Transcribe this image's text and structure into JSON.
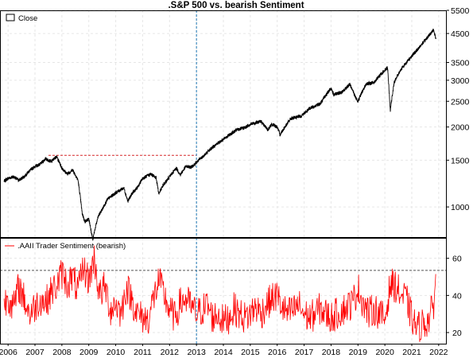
{
  "chart_data": [
    {
      "type": "line",
      "title": ".S&P 500 vs. bearish Sentiment",
      "xlabel": "",
      "ylabel": "",
      "y_scale": "log",
      "ylim": [
        770,
        5500
      ],
      "y_ticks": [
        1000,
        1500,
        2000,
        2500,
        3000,
        3500,
        4500,
        5500
      ],
      "x_tick_labels": [
        "2006",
        "2007",
        "2008",
        "2009",
        "2010",
        "2011",
        "2012",
        "2013",
        "2014",
        "2015",
        "2016",
        "2017",
        "2018",
        "2019",
        "2020",
        "2021",
        "2022"
      ],
      "xlim": [
        2005.7,
        2022.3
      ],
      "grid": true,
      "legend_position": "top-left",
      "series": [
        {
          "name": "Close",
          "color": "#000000",
          "x": [
            2005.85,
            2006.0,
            2006.2,
            2006.4,
            2006.6,
            2006.8,
            2007.0,
            2007.2,
            2007.4,
            2007.6,
            2007.8,
            2008.0,
            2008.2,
            2008.4,
            2008.6,
            2008.75,
            2008.85,
            2009.0,
            2009.15,
            2009.2,
            2009.35,
            2009.5,
            2009.7,
            2010.0,
            2010.3,
            2010.45,
            2010.6,
            2010.8,
            2011.0,
            2011.3,
            2011.5,
            2011.6,
            2011.75,
            2012.0,
            2012.25,
            2012.4,
            2012.6,
            2012.8,
            2013.0,
            2013.3,
            2013.6,
            2014.0,
            2014.5,
            2014.8,
            2015.0,
            2015.4,
            2015.65,
            2015.8,
            2016.0,
            2016.1,
            2016.5,
            2016.9,
            2017.2,
            2017.6,
            2018.0,
            2018.1,
            2018.4,
            2018.7,
            2018.9,
            2019.0,
            2019.3,
            2019.6,
            2019.9,
            2020.1,
            2020.2,
            2020.35,
            2020.6,
            2020.9,
            2021.2,
            2021.5,
            2021.7,
            2021.8,
            2021.9
          ],
          "y": [
            1250,
            1280,
            1300,
            1260,
            1300,
            1370,
            1420,
            1450,
            1520,
            1480,
            1550,
            1400,
            1330,
            1380,
            1260,
            950,
            880,
            900,
            750,
            800,
            920,
            980,
            1070,
            1130,
            1180,
            1050,
            1120,
            1180,
            1280,
            1330,
            1290,
            1120,
            1200,
            1300,
            1400,
            1320,
            1420,
            1410,
            1470,
            1570,
            1680,
            1800,
            1950,
            1990,
            2050,
            2100,
            1950,
            2050,
            2000,
            1870,
            2150,
            2200,
            2350,
            2450,
            2800,
            2650,
            2700,
            2900,
            2600,
            2500,
            2900,
            2950,
            3200,
            3350,
            2300,
            2950,
            3300,
            3600,
            3900,
            4250,
            4500,
            4650,
            4300
          ]
        }
      ],
      "annotations": [
        {
          "type": "horizontal_dashed_segment",
          "x": [
            2007.5,
            2013.0
          ],
          "y": 1565,
          "color": "#d62728"
        },
        {
          "type": "vertical_dashed_line",
          "x": 2013.0,
          "color": "#1f77b4"
        }
      ]
    },
    {
      "type": "line",
      "title": "",
      "xlabel": "",
      "ylabel": "",
      "ylim": [
        14,
        71
      ],
      "y_ticks": [
        20,
        40,
        60
      ],
      "xlim": [
        2005.7,
        2022.3
      ],
      "grid": true,
      "legend_position": "top-left",
      "series": [
        {
          "name": ".AAII Trader Sentiment (bearish)",
          "color": "#ff0000",
          "x": [
            2005.85,
            2006.0,
            2006.2,
            2006.4,
            2006.6,
            2006.8,
            2007.0,
            2007.2,
            2007.4,
            2007.6,
            2007.8,
            2008.0,
            2008.2,
            2008.4,
            2008.6,
            2008.8,
            2009.0,
            2009.2,
            2009.4,
            2009.6,
            2009.8,
            2010.0,
            2010.2,
            2010.4,
            2010.6,
            2010.8,
            2011.0,
            2011.2,
            2011.4,
            2011.6,
            2011.8,
            2012.0,
            2012.2,
            2012.4,
            2012.6,
            2012.8,
            2013.0,
            2013.2,
            2013.4,
            2013.6,
            2013.8,
            2014.0,
            2014.2,
            2014.4,
            2014.6,
            2014.8,
            2015.0,
            2015.2,
            2015.4,
            2015.6,
            2015.8,
            2016.0,
            2016.2,
            2016.4,
            2016.6,
            2016.8,
            2017.0,
            2017.2,
            2017.4,
            2017.6,
            2017.8,
            2018.0,
            2018.2,
            2018.4,
            2018.6,
            2018.8,
            2019.0,
            2019.2,
            2019.4,
            2019.6,
            2019.8,
            2020.0,
            2020.2,
            2020.4,
            2020.6,
            2020.8,
            2021.0,
            2021.2,
            2021.4,
            2021.6,
            2021.8,
            2021.9
          ],
          "y": [
            35,
            40,
            33,
            45,
            38,
            30,
            34,
            38,
            36,
            42,
            45,
            52,
            46,
            50,
            42,
            55,
            48,
            60,
            40,
            45,
            32,
            36,
            30,
            45,
            38,
            30,
            28,
            27,
            38,
            48,
            40,
            32,
            28,
            36,
            38,
            34,
            30,
            32,
            35,
            28,
            30,
            26,
            28,
            33,
            30,
            28,
            30,
            34,
            30,
            35,
            38,
            40,
            33,
            30,
            32,
            35,
            30,
            28,
            30,
            33,
            30,
            28,
            30,
            32,
            34,
            36,
            44,
            36,
            30,
            33,
            30,
            27,
            46,
            45,
            40,
            38,
            28,
            22,
            25,
            26,
            34,
            52
          ]
        }
      ],
      "annotations": [
        {
          "type": "horizontal_dashed_line",
          "y": 53.5,
          "color": "#555555"
        },
        {
          "type": "vertical_dashed_line",
          "x": 2013.0,
          "color": "#1f77b4"
        }
      ]
    }
  ]
}
